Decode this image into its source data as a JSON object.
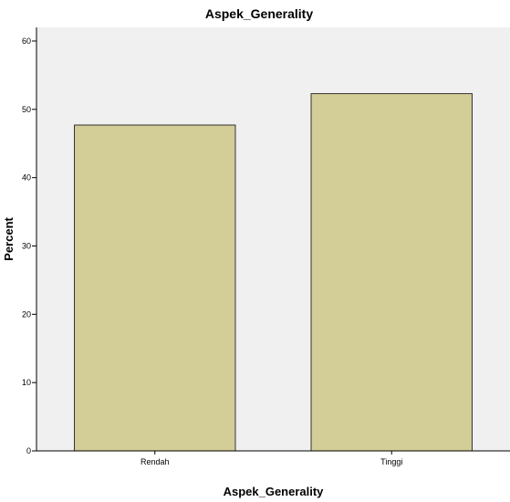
{
  "chart_data": {
    "type": "bar",
    "title": "Aspek_Generality",
    "xlabel": "Aspek_Generality",
    "ylabel": "Percent",
    "categories": [
      "Rendah",
      "Tinggi"
    ],
    "values": [
      47.7,
      52.3
    ],
    "ylim": [
      0,
      62
    ],
    "yticks": [
      0,
      10,
      20,
      30,
      40,
      50,
      60
    ],
    "grid": false,
    "legend": "none",
    "colors": {
      "plot_background": "#f0f0f0",
      "bar_fill": "#d3ce97",
      "bar_stroke": "#333333"
    }
  }
}
